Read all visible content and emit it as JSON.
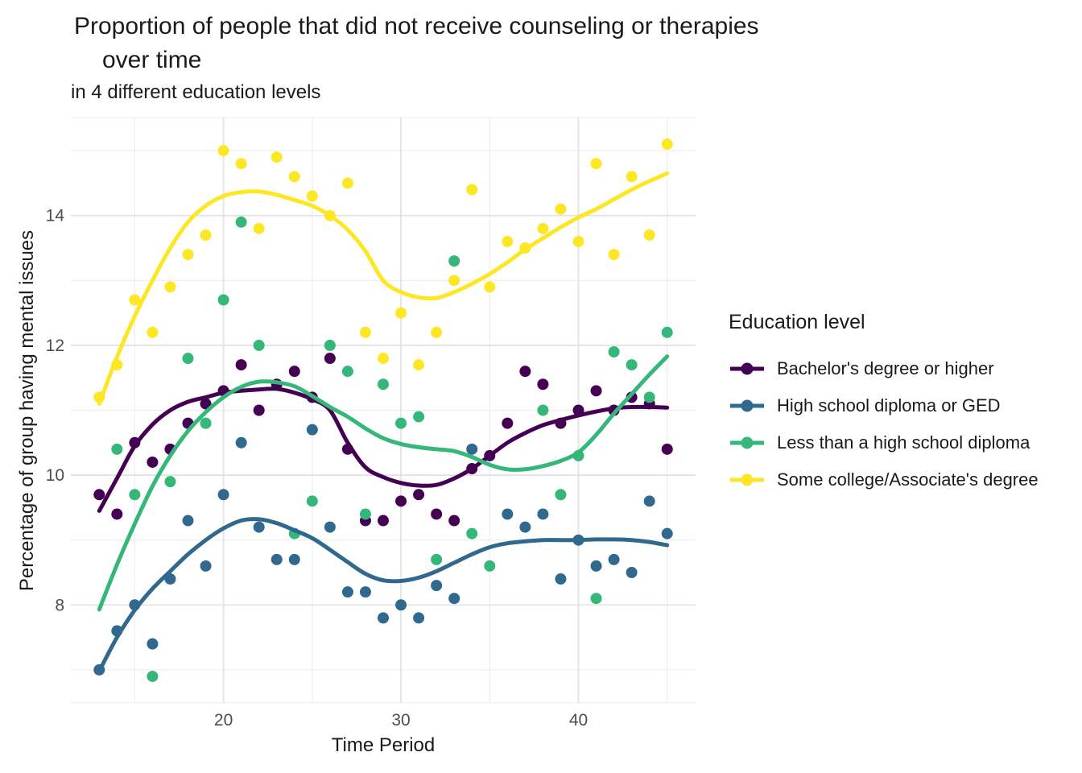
{
  "header": {
    "title_line1": "Proportion of people that did not receive counseling or therapies",
    "title_line2": "over time",
    "subtitle": "in 4 different education levels"
  },
  "chart_data": {
    "type": "scatter",
    "title": "Proportion of people that did not receive counseling or therapies over time",
    "subtitle": "in 4 different education levels",
    "xlabel": "Time Period",
    "ylabel": "Percentage of group having mental issues",
    "legend_title": "Education level",
    "legend_position": "right",
    "grid": true,
    "x_ticks": [
      20,
      30,
      40
    ],
    "x_minor_ticks": [
      15,
      25,
      35,
      45
    ],
    "y_ticks": [
      8,
      10,
      12,
      14
    ],
    "y_minor_ticks": [
      7,
      9,
      11,
      13,
      15
    ],
    "xlim": [
      11.4,
      46.6
    ],
    "ylim": [
      6.49,
      15.51
    ],
    "point_radius": 7,
    "line_width": 5,
    "series": [
      {
        "id": "bachelors",
        "name": "Bachelor's degree or higher",
        "color": "#440154",
        "points": [
          [
            13,
            9.7
          ],
          [
            14,
            9.4
          ],
          [
            15,
            10.5
          ],
          [
            16,
            10.2
          ],
          [
            17,
            10.4
          ],
          [
            18,
            10.8
          ],
          [
            19,
            11.1
          ],
          [
            20,
            11.3
          ],
          [
            21,
            11.7
          ],
          [
            22,
            11.0
          ],
          [
            23,
            11.4
          ],
          [
            24,
            11.6
          ],
          [
            25,
            11.2
          ],
          [
            26,
            11.8
          ],
          [
            27,
            10.4
          ],
          [
            28,
            9.3
          ],
          [
            29,
            9.3
          ],
          [
            30,
            9.6
          ],
          [
            31,
            9.7
          ],
          [
            32,
            9.4
          ],
          [
            33,
            9.3
          ],
          [
            34,
            10.1
          ],
          [
            35,
            10.3
          ],
          [
            36,
            10.8
          ],
          [
            37,
            11.6
          ],
          [
            38,
            11.4
          ],
          [
            39,
            10.8
          ],
          [
            40,
            11.0
          ],
          [
            41,
            11.3
          ],
          [
            42,
            11.0
          ],
          [
            43,
            11.2
          ],
          [
            44,
            11.1
          ],
          [
            45,
            10.4
          ]
        ],
        "smooth": [
          [
            13,
            9.45
          ],
          [
            14,
            9.95
          ],
          [
            15,
            10.45
          ],
          [
            16,
            10.78
          ],
          [
            17,
            11.0
          ],
          [
            18,
            11.13
          ],
          [
            19,
            11.2
          ],
          [
            20,
            11.27
          ],
          [
            21,
            11.3
          ],
          [
            22,
            11.32
          ],
          [
            23,
            11.33
          ],
          [
            24,
            11.27
          ],
          [
            25,
            11.17
          ],
          [
            26,
            11.0
          ],
          [
            27,
            10.5
          ],
          [
            28,
            10.12
          ],
          [
            29,
            9.97
          ],
          [
            30,
            9.88
          ],
          [
            31,
            9.84
          ],
          [
            32,
            9.85
          ],
          [
            33,
            9.95
          ],
          [
            34,
            10.1
          ],
          [
            35,
            10.3
          ],
          [
            36,
            10.5
          ],
          [
            37,
            10.65
          ],
          [
            38,
            10.77
          ],
          [
            39,
            10.85
          ],
          [
            40,
            10.92
          ],
          [
            41,
            10.98
          ],
          [
            42,
            11.03
          ],
          [
            43,
            11.05
          ],
          [
            44,
            11.05
          ],
          [
            45,
            11.04
          ]
        ]
      },
      {
        "id": "highschool",
        "name": "High school diploma or GED",
        "color": "#31688E",
        "points": [
          [
            13,
            7.0
          ],
          [
            14,
            7.6
          ],
          [
            15,
            8.0
          ],
          [
            16,
            7.4
          ],
          [
            17,
            8.4
          ],
          [
            18,
            9.3
          ],
          [
            19,
            8.6
          ],
          [
            20,
            9.7
          ],
          [
            21,
            10.5
          ],
          [
            22,
            9.2
          ],
          [
            23,
            8.7
          ],
          [
            24,
            8.7
          ],
          [
            25,
            10.7
          ],
          [
            26,
            9.2
          ],
          [
            27,
            8.2
          ],
          [
            28,
            8.2
          ],
          [
            29,
            7.8
          ],
          [
            30,
            8.0
          ],
          [
            31,
            7.8
          ],
          [
            32,
            8.3
          ],
          [
            33,
            8.1
          ],
          [
            34,
            10.4
          ],
          [
            36,
            9.4
          ],
          [
            37,
            9.2
          ],
          [
            38,
            9.4
          ],
          [
            39,
            8.4
          ],
          [
            40,
            9.0
          ],
          [
            41,
            8.6
          ],
          [
            42,
            8.7
          ],
          [
            43,
            8.5
          ],
          [
            44,
            9.6
          ],
          [
            45,
            9.1
          ]
        ],
        "smooth": [
          [
            13,
            6.98
          ],
          [
            14,
            7.5
          ],
          [
            15,
            7.92
          ],
          [
            16,
            8.25
          ],
          [
            17,
            8.52
          ],
          [
            18,
            8.78
          ],
          [
            19,
            9.0
          ],
          [
            20,
            9.18
          ],
          [
            21,
            9.3
          ],
          [
            22,
            9.32
          ],
          [
            23,
            9.26
          ],
          [
            24,
            9.15
          ],
          [
            25,
            9.03
          ],
          [
            26,
            8.85
          ],
          [
            27,
            8.66
          ],
          [
            28,
            8.48
          ],
          [
            29,
            8.38
          ],
          [
            30,
            8.37
          ],
          [
            31,
            8.42
          ],
          [
            32,
            8.52
          ],
          [
            33,
            8.65
          ],
          [
            34,
            8.78
          ],
          [
            35,
            8.89
          ],
          [
            36,
            8.95
          ],
          [
            37,
            8.98
          ],
          [
            38,
            9.0
          ],
          [
            39,
            9.0
          ],
          [
            40,
            9.0
          ],
          [
            41,
            9.01
          ],
          [
            42,
            9.01
          ],
          [
            43,
            9.0
          ],
          [
            44,
            8.97
          ],
          [
            45,
            8.92
          ]
        ]
      },
      {
        "id": "less_than_highschool",
        "name": "Less than a high school diploma",
        "color": "#35B779",
        "points": [
          [
            14,
            10.4
          ],
          [
            15,
            9.7
          ],
          [
            16,
            6.9
          ],
          [
            17,
            9.9
          ],
          [
            18,
            11.8
          ],
          [
            19,
            10.8
          ],
          [
            20,
            12.7
          ],
          [
            21,
            13.9
          ],
          [
            22,
            12.0
          ],
          [
            24,
            9.1
          ],
          [
            25,
            9.6
          ],
          [
            26,
            12.0
          ],
          [
            27,
            11.6
          ],
          [
            28,
            9.4
          ],
          [
            29,
            11.4
          ],
          [
            30,
            10.8
          ],
          [
            31,
            10.9
          ],
          [
            32,
            8.7
          ],
          [
            33,
            13.3
          ],
          [
            34,
            9.1
          ],
          [
            35,
            8.6
          ],
          [
            38,
            11.0
          ],
          [
            39,
            9.7
          ],
          [
            40,
            10.3
          ],
          [
            41,
            8.1
          ],
          [
            42,
            11.9
          ],
          [
            43,
            11.7
          ],
          [
            44,
            11.2
          ],
          [
            45,
            12.2
          ]
        ],
        "smooth": [
          [
            13,
            7.93
          ],
          [
            14,
            8.62
          ],
          [
            15,
            9.25
          ],
          [
            16,
            9.83
          ],
          [
            17,
            10.3
          ],
          [
            18,
            10.68
          ],
          [
            19,
            10.97
          ],
          [
            20,
            11.2
          ],
          [
            21,
            11.36
          ],
          [
            22,
            11.44
          ],
          [
            23,
            11.43
          ],
          [
            24,
            11.37
          ],
          [
            25,
            11.22
          ],
          [
            26,
            11.05
          ],
          [
            27,
            10.9
          ],
          [
            28,
            10.72
          ],
          [
            29,
            10.57
          ],
          [
            30,
            10.48
          ],
          [
            31,
            10.43
          ],
          [
            32,
            10.4
          ],
          [
            33,
            10.37
          ],
          [
            34,
            10.28
          ],
          [
            35,
            10.16
          ],
          [
            36,
            10.09
          ],
          [
            37,
            10.09
          ],
          [
            38,
            10.14
          ],
          [
            39,
            10.22
          ],
          [
            40,
            10.35
          ],
          [
            41,
            10.62
          ],
          [
            42,
            10.95
          ],
          [
            43,
            11.25
          ],
          [
            44,
            11.55
          ],
          [
            45,
            11.83
          ]
        ]
      },
      {
        "id": "some_college",
        "name": "Some college/Associate's degree",
        "color": "#FDE725",
        "points": [
          [
            13,
            11.2
          ],
          [
            14,
            11.7
          ],
          [
            15,
            12.7
          ],
          [
            16,
            12.2
          ],
          [
            17,
            12.9
          ],
          [
            18,
            13.4
          ],
          [
            19,
            13.7
          ],
          [
            20,
            15.0
          ],
          [
            21,
            14.8
          ],
          [
            22,
            13.8
          ],
          [
            23,
            14.9
          ],
          [
            24,
            14.6
          ],
          [
            25,
            14.3
          ],
          [
            26,
            14.0
          ],
          [
            27,
            14.5
          ],
          [
            28,
            12.2
          ],
          [
            29,
            11.8
          ],
          [
            30,
            12.5
          ],
          [
            31,
            11.7
          ],
          [
            32,
            12.2
          ],
          [
            33,
            13.0
          ],
          [
            34,
            14.4
          ],
          [
            35,
            12.9
          ],
          [
            36,
            13.6
          ],
          [
            37,
            13.5
          ],
          [
            38,
            13.8
          ],
          [
            39,
            14.1
          ],
          [
            40,
            13.6
          ],
          [
            41,
            14.8
          ],
          [
            42,
            13.4
          ],
          [
            43,
            14.6
          ],
          [
            44,
            13.7
          ],
          [
            45,
            15.1
          ]
        ],
        "smooth": [
          [
            13,
            11.1
          ],
          [
            14,
            11.82
          ],
          [
            15,
            12.45
          ],
          [
            16,
            13.0
          ],
          [
            17,
            13.5
          ],
          [
            18,
            13.9
          ],
          [
            19,
            14.15
          ],
          [
            20,
            14.3
          ],
          [
            21,
            14.36
          ],
          [
            22,
            14.37
          ],
          [
            23,
            14.32
          ],
          [
            24,
            14.24
          ],
          [
            25,
            14.15
          ],
          [
            26,
            14.0
          ],
          [
            27,
            13.78
          ],
          [
            28,
            13.45
          ],
          [
            29,
            13.0
          ],
          [
            30,
            12.82
          ],
          [
            31,
            12.74
          ],
          [
            32,
            12.73
          ],
          [
            33,
            12.82
          ],
          [
            34,
            12.95
          ],
          [
            35,
            13.1
          ],
          [
            36,
            13.28
          ],
          [
            37,
            13.48
          ],
          [
            38,
            13.65
          ],
          [
            39,
            13.82
          ],
          [
            40,
            13.97
          ],
          [
            41,
            14.1
          ],
          [
            42,
            14.25
          ],
          [
            43,
            14.4
          ],
          [
            44,
            14.53
          ],
          [
            45,
            14.65
          ]
        ]
      }
    ]
  }
}
